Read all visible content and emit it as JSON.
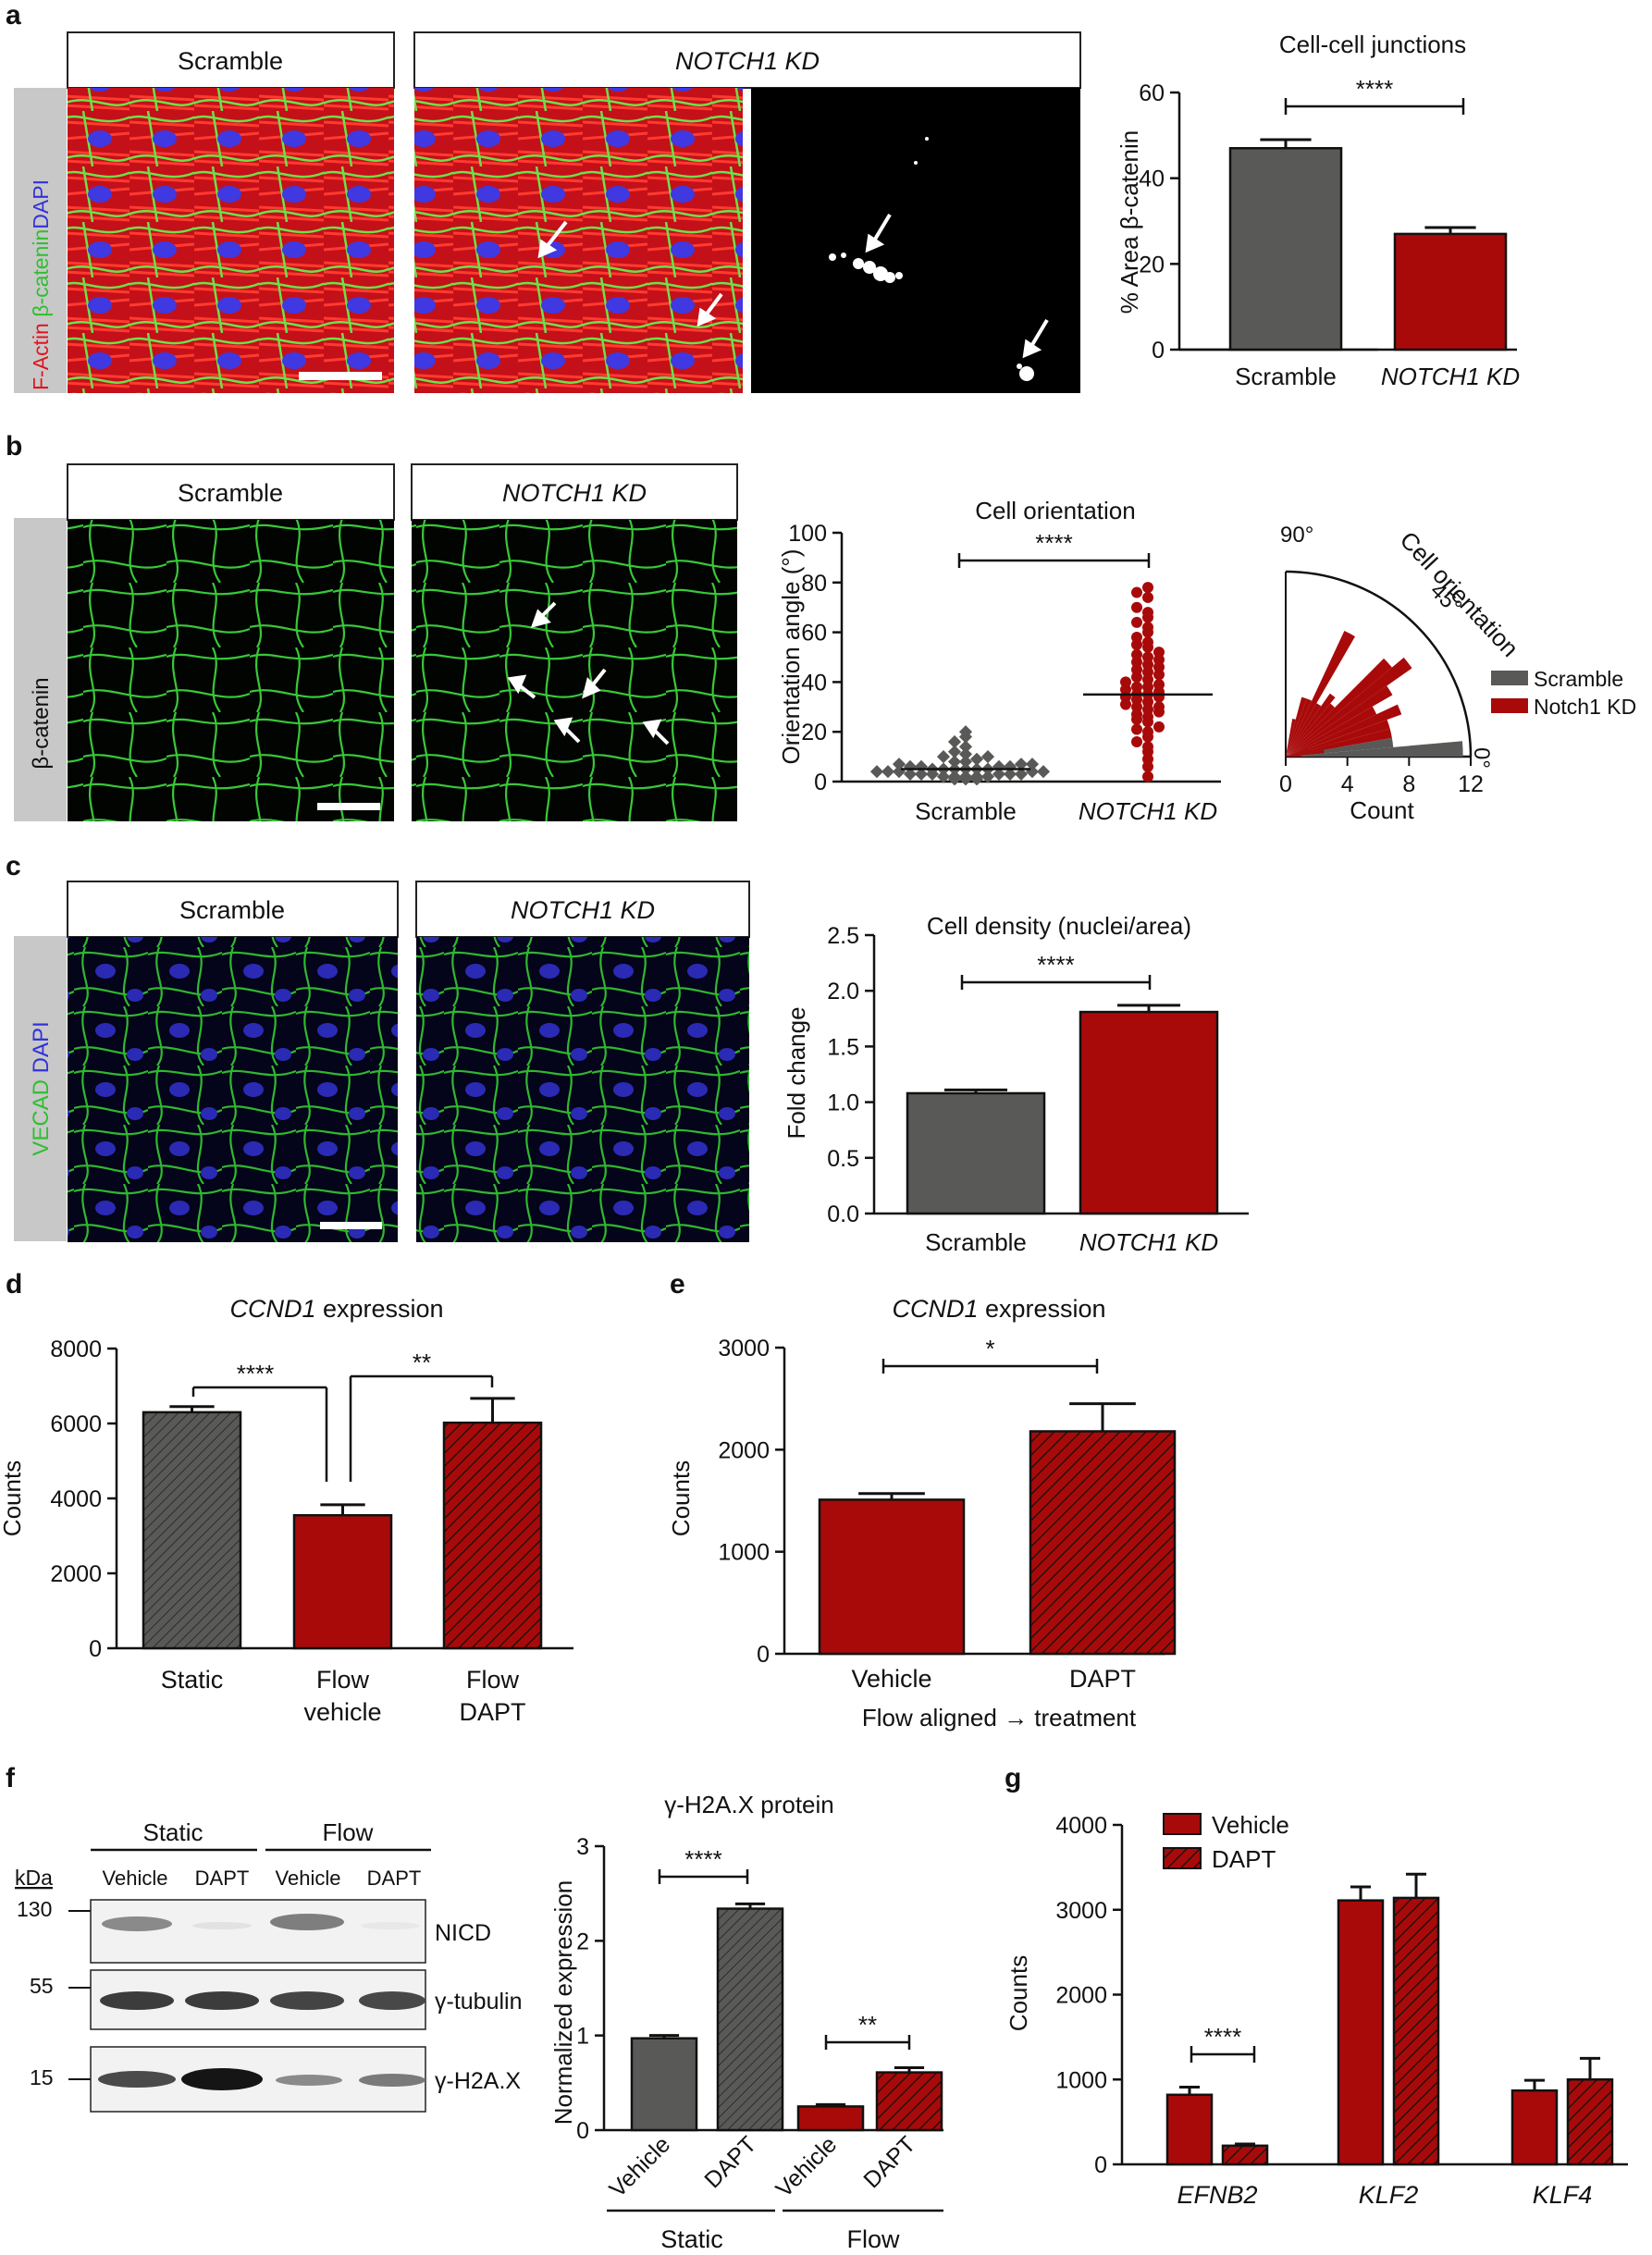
{
  "panels": {
    "a": {
      "letter": "a",
      "headers": [
        "Scramble",
        "NOTCH1 KD"
      ],
      "stain": {
        "p1": "F-Actin ",
        "p2": "β-catenin",
        "p3": "DAPI"
      },
      "chart_title": "Cell-cell junctions",
      "ylabel": "% Area β-catenin",
      "yticks": [
        "0",
        "20",
        "40",
        "60"
      ],
      "sig": "****"
    },
    "b": {
      "letter": "b",
      "headers": [
        "Scramble",
        "NOTCH1 KD"
      ],
      "stain": "β-catenin",
      "chart_title": "Cell orientation",
      "ylabel": "Orientation angle (°)",
      "yticks": [
        "0",
        "20",
        "40",
        "60",
        "80",
        "100"
      ],
      "sig": "****",
      "polar_title": "Cell orientation",
      "polar_90": "90°",
      "polar_45": "45°",
      "polar_0": "0°",
      "polar_xticks": [
        "0",
        "4",
        "8",
        "12"
      ],
      "polar_xlabel": "Count",
      "legend": [
        "Scramble",
        "Notch1 KD"
      ]
    },
    "c": {
      "letter": "c",
      "headers": [
        "Scramble",
        "NOTCH1 KD"
      ],
      "stain": {
        "p1": "VECAD ",
        "p2": "DAPI"
      },
      "chart_title": "Cell density (nuclei/area)",
      "ylabel": "Fold change",
      "yticks": [
        "0.0",
        "0.5",
        "1.0",
        "1.5",
        "2.0",
        "2.5"
      ],
      "sig": "****"
    },
    "d": {
      "letter": "d",
      "title_italic": "CCND1",
      "title_rest": " expression",
      "ylabel": "Counts",
      "yticks": [
        "0",
        "2000",
        "4000",
        "6000",
        "8000"
      ],
      "sig1": "****",
      "sig2": "**",
      "xlabels": [
        [
          "Static"
        ],
        [
          "Flow",
          "vehicle"
        ],
        [
          "Flow",
          "DAPT"
        ]
      ]
    },
    "e": {
      "letter": "e",
      "title_italic": "CCND1",
      "title_rest": " expression",
      "ylabel": "Counts",
      "yticks": [
        "0",
        "1000",
        "2000",
        "3000"
      ],
      "sig": "*",
      "xlabel": "Flow aligned → treatment"
    },
    "f": {
      "letter": "f",
      "kda": "kDa",
      "groups": [
        "Static",
        "Flow"
      ],
      "lanes": [
        "Vehicle",
        "DAPT",
        "Vehicle",
        "DAPT"
      ],
      "markers": [
        "130",
        "55",
        "15"
      ],
      "proteins": [
        "NICD",
        "γ-tubulin",
        "γ-H2A.X"
      ],
      "chart_title": "γ-H2A.X protein",
      "ylabel": "Normalized expression",
      "yticks": [
        "0",
        "1",
        "2",
        "3"
      ],
      "sig1": "****",
      "sig2": "**",
      "group_labels": [
        "Static",
        "Flow"
      ]
    },
    "g": {
      "letter": "g",
      "ylabel": "Counts",
      "yticks": [
        "0",
        "1000",
        "2000",
        "3000",
        "4000"
      ],
      "sig": "****",
      "legend": [
        "Vehicle",
        "DAPT"
      ]
    }
  },
  "colors": {
    "scramble": "#595a58",
    "notch": "#a80a0a",
    "fluor_red": "#e0141e",
    "fluor_green": "#3cd23c",
    "fluor_blue": "#3232dc",
    "microscopy_bg": "#000000",
    "stain_bar": "#c8c8c8"
  },
  "chart_data": [
    {
      "panel": "a",
      "type": "bar",
      "title": "Cell-cell junctions",
      "xlabel": "",
      "ylabel": "% Area β-catenin",
      "categories": [
        "Scramble",
        "NOTCH1 KD"
      ],
      "values": [
        47,
        27
      ],
      "errors": [
        2,
        1.5
      ],
      "ylim": [
        0,
        60
      ],
      "colors": [
        "#595a58",
        "#a80a0a"
      ],
      "hatch": [
        false,
        false
      ]
    },
    {
      "panel": "b",
      "type": "scatter",
      "title": "Cell orientation",
      "ylabel": "Orientation angle (°)",
      "categories": [
        "Scramble",
        "NOTCH1 KD"
      ],
      "series": [
        {
          "values": [
            1,
            1,
            1,
            2,
            2,
            2,
            2,
            2,
            3,
            3,
            3,
            3,
            3,
            3,
            4,
            4,
            4,
            4,
            4,
            5,
            5,
            5,
            5,
            5,
            5,
            6,
            6,
            6,
            6,
            7,
            7,
            7,
            8,
            8,
            9,
            10,
            10,
            11,
            12,
            14,
            16,
            18,
            20
          ]
        },
        {
          "values": [
            2,
            6,
            9,
            12,
            14,
            16,
            18,
            20,
            21,
            22,
            24,
            25,
            26,
            27,
            28,
            29,
            30,
            30,
            31,
            32,
            33,
            34,
            34,
            35,
            35,
            36,
            37,
            38,
            38,
            39,
            40,
            41,
            42,
            43,
            44,
            45,
            46,
            47,
            48,
            49,
            50,
            51,
            52,
            54,
            55,
            56,
            58,
            60,
            62,
            64,
            66,
            68,
            70,
            74,
            76,
            78
          ]
        }
      ],
      "means": [
        5,
        35
      ],
      "ylim": [
        0,
        100
      ]
    },
    {
      "panel": "b",
      "type": "bar",
      "subtype": "polar-histogram",
      "title": "Cell orientation",
      "xlabel": "Count",
      "angle_bins_deg": [
        [
          0,
          5
        ],
        [
          5,
          10
        ],
        [
          10,
          15
        ],
        [
          15,
          20
        ],
        [
          20,
          25
        ],
        [
          25,
          30
        ],
        [
          30,
          35
        ],
        [
          35,
          40
        ],
        [
          40,
          45
        ],
        [
          45,
          50
        ],
        [
          50,
          55
        ],
        [
          55,
          60
        ],
        [
          60,
          65
        ],
        [
          65,
          70
        ],
        [
          70,
          75
        ],
        [
          75,
          80
        ]
      ],
      "series": [
        {
          "name": "Scramble",
          "values": [
            11.5,
            7,
            3.5,
            1.5,
            0,
            0,
            0,
            0,
            0,
            0,
            0,
            0,
            0,
            0,
            0,
            0
          ]
        },
        {
          "name": "Notch1 KD",
          "values": [
            1,
            2.5,
            7,
            7,
            8,
            6.5,
            8,
            10,
            9,
            4.5,
            5,
            4,
            9,
            4,
            4,
            2.5
          ]
        }
      ],
      "xlim": [
        0,
        12
      ]
    },
    {
      "panel": "c",
      "type": "bar",
      "title": "Cell density (nuclei/area)",
      "ylabel": "Fold change",
      "categories": [
        "Scramble",
        "NOTCH1 KD"
      ],
      "values": [
        1.08,
        1.81
      ],
      "errors": [
        0.03,
        0.06
      ],
      "ylim": [
        0,
        2.5
      ],
      "colors": [
        "#595a58",
        "#a80a0a"
      ],
      "hatch": [
        false,
        false
      ]
    },
    {
      "panel": "d",
      "type": "bar",
      "title": "CCND1 expression",
      "ylabel": "Counts",
      "categories": [
        "Static",
        "Flow vehicle",
        "Flow DAPT"
      ],
      "values": [
        6300,
        3550,
        6020
      ],
      "errors": [
        150,
        280,
        650
      ],
      "ylim": [
        0,
        8000
      ],
      "colors": [
        "#595a58",
        "#a80a0a",
        "#a80a0a"
      ],
      "hatch": [
        true,
        false,
        true
      ]
    },
    {
      "panel": "e",
      "type": "bar",
      "title": "CCND1 expression",
      "ylabel": "Counts",
      "xlabel": "Flow aligned → treatment",
      "categories": [
        "Vehicle",
        "DAPT"
      ],
      "values": [
        1510,
        2180
      ],
      "errors": [
        60,
        270
      ],
      "ylim": [
        0,
        3000
      ],
      "colors": [
        "#a80a0a",
        "#a80a0a"
      ],
      "hatch": [
        false,
        true
      ]
    },
    {
      "panel": "f",
      "type": "bar",
      "title": "γ-H2A.X protein",
      "ylabel": "Normalized expression",
      "categories": [
        "Vehicle",
        "DAPT",
        "Vehicle",
        "DAPT"
      ],
      "values": [
        0.97,
        2.34,
        0.25,
        0.61
      ],
      "errors": [
        0.03,
        0.05,
        0.02,
        0.05
      ],
      "ylim": [
        0,
        3
      ],
      "colors": [
        "#595a58",
        "#595a58",
        "#a80a0a",
        "#a80a0a"
      ],
      "hatch": [
        false,
        true,
        false,
        true
      ]
    },
    {
      "panel": "g",
      "type": "bar",
      "ylabel": "Counts",
      "categories": [
        "EFNB2",
        "KLF2",
        "KLF4"
      ],
      "series": [
        {
          "name": "Vehicle",
          "values": [
            820,
            3110,
            870
          ],
          "errors": [
            90,
            160,
            120
          ]
        },
        {
          "name": "DAPT",
          "values": [
            220,
            3140,
            1000
          ],
          "errors": [
            20,
            280,
            250
          ]
        }
      ],
      "ylim": [
        0,
        4000
      ]
    }
  ]
}
